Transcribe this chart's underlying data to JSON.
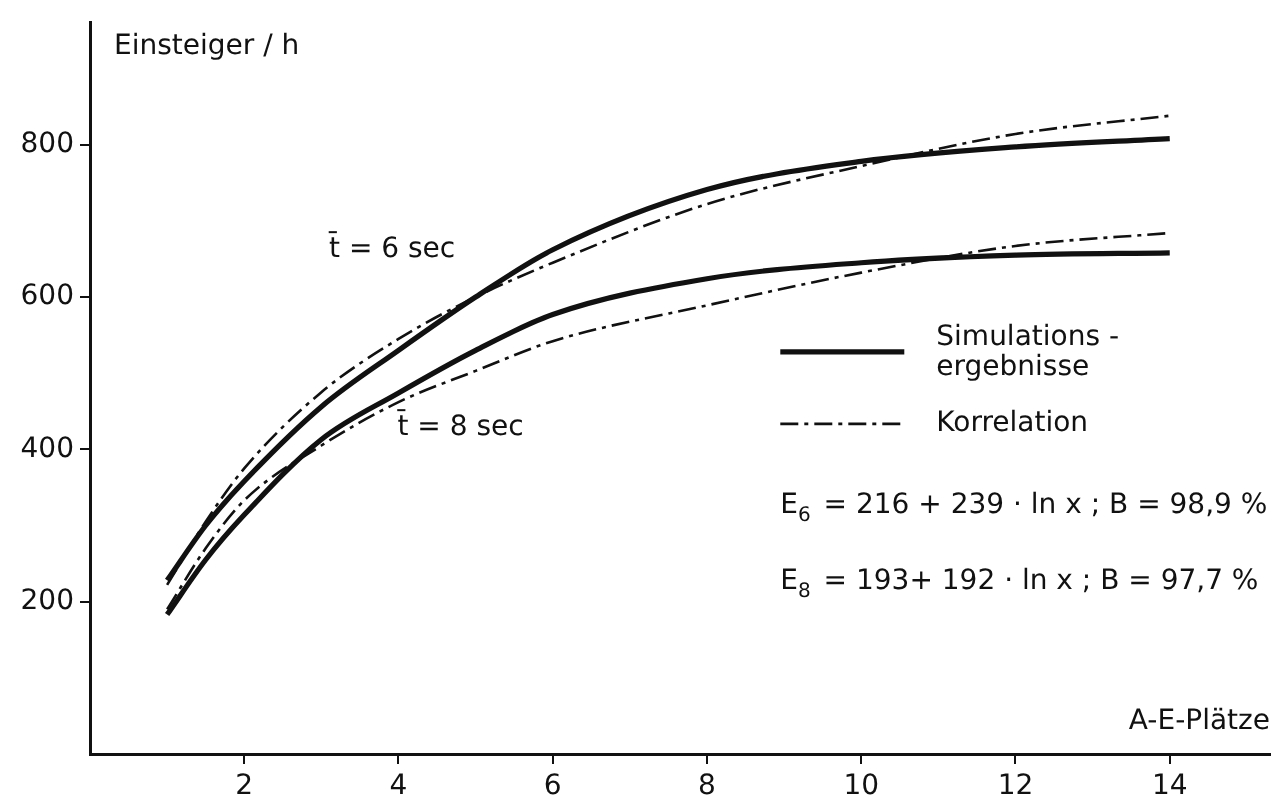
{
  "chart_data": {
    "type": "line",
    "xlabel": "A-E-Plätze",
    "ylabel": "Einsteiger / h",
    "xlim": [
      0,
      15.3
    ],
    "xticks": [
      2,
      4,
      6,
      8,
      10,
      12,
      14
    ],
    "ylim": [
      0,
      960
    ],
    "yticks": [
      200,
      400,
      600,
      800
    ],
    "grid": false,
    "legend": "right",
    "marker": "none",
    "series": [
      {
        "name": "Simulations - ergebnisse",
        "color": "#111111",
        "line_style": "solid",
        "x": [
          1,
          1.5,
          2,
          3,
          4,
          5,
          6,
          8,
          10,
          12,
          14
        ],
        "values": [
          228,
          300,
          358,
          456,
          530,
          600,
          662,
          741,
          778,
          797,
          808
        ]
      },
      {
        "name": "Korrelation",
        "color": "#111111",
        "line_style": "dashed",
        "x": [
          1,
          1.5,
          2,
          3,
          4,
          5,
          6,
          8,
          10,
          12,
          14
        ],
        "values": [
          222,
          305,
          375,
          475,
          545,
          600,
          645,
          722,
          772,
          814,
          838
        ]
      },
      {
        "color": "#111111",
        "line_style": "solid",
        "x": [
          1,
          1.5,
          2,
          3,
          4,
          5,
          6,
          8,
          10,
          12,
          14
        ],
        "values": [
          183,
          255,
          314,
          413,
          474,
          530,
          577,
          624,
          645,
          655,
          658
        ]
      },
      {
        "color": "#111111",
        "line_style": "dashed",
        "x": [
          1,
          1.5,
          2,
          3,
          4,
          5,
          6,
          8,
          10,
          12,
          14
        ],
        "values": [
          190,
          270,
          333,
          405,
          462,
          503,
          542,
          589,
          632,
          667,
          684
        ]
      }
    ],
    "annotations": [
      "t̄ = 6 sec",
      "t̄ = 8 sec",
      "E$_{6}$ = 216 + 239 · ln x ; B = 98,9 %",
      "E$_{8}$ = 193+ 192 · ln x ; B = 97,7 %"
    ]
  }
}
